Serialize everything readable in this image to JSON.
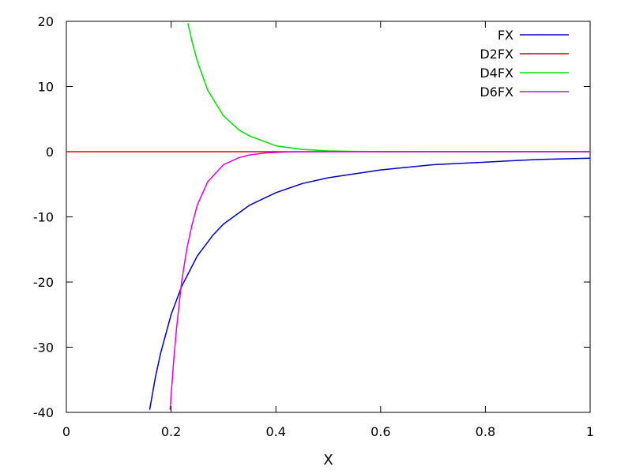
{
  "chart_data": {
    "type": "line",
    "title": "",
    "xlabel": "X",
    "ylabel": "",
    "xlim": [
      0,
      1
    ],
    "ylim": [
      -40,
      20
    ],
    "x_ticks": [
      0,
      0.2,
      0.4,
      0.6,
      0.8,
      1
    ],
    "x_tick_labels": [
      "0",
      "0.2",
      "0.4",
      "0.6",
      "0.8",
      "1"
    ],
    "y_ticks": [
      -40,
      -30,
      -20,
      -10,
      0,
      10,
      20
    ],
    "y_tick_labels": [
      "-40",
      "-30",
      "-20",
      "-10",
      "0",
      "10",
      "20"
    ],
    "grid": false,
    "legend_position": "top-right",
    "series": [
      {
        "name": "FX",
        "color": "#0000c0",
        "x": [
          0.159,
          0.17,
          0.18,
          0.2,
          0.22,
          0.25,
          0.28,
          0.3,
          0.35,
          0.4,
          0.45,
          0.5,
          0.6,
          0.7,
          0.8,
          0.9,
          1.0
        ],
        "y": [
          -39.6,
          -34.6,
          -30.9,
          -25,
          -20.7,
          -16,
          -12.8,
          -11.1,
          -8.2,
          -6.3,
          -4.9,
          -4,
          -2.8,
          -2,
          -1.6,
          -1.2,
          -1
        ]
      },
      {
        "name": "D2FX",
        "color": "#e00000",
        "x": [
          0,
          0.2,
          0.4,
          0.6,
          0.8,
          1.0
        ],
        "y": [
          0,
          0,
          0,
          0,
          0,
          0
        ]
      },
      {
        "name": "D4FX",
        "color": "#00e000",
        "x": [
          0.232,
          0.24,
          0.25,
          0.27,
          0.3,
          0.33,
          0.35,
          0.4,
          0.45,
          0.5,
          0.55,
          0.6,
          0.7,
          0.8,
          1.0
        ],
        "y": [
          19.7,
          16.9,
          13.9,
          9.4,
          5.5,
          3.3,
          2.4,
          0.9,
          0.35,
          0.12,
          0.04,
          0.01,
          0,
          0,
          0
        ]
      },
      {
        "name": "D6FX",
        "color": "#e000e0",
        "x": [
          0.198,
          0.205,
          0.21,
          0.22,
          0.23,
          0.24,
          0.25,
          0.27,
          0.3,
          0.33,
          0.35,
          0.38,
          0.42,
          0.5,
          0.6,
          1.0
        ],
        "y": [
          -39.6,
          -32.0,
          -27.4,
          -20.0,
          -14.9,
          -11.2,
          -8.2,
          -4.6,
          -2.0,
          -0.9,
          -0.5,
          -0.2,
          -0.05,
          0,
          0,
          0
        ]
      }
    ]
  }
}
